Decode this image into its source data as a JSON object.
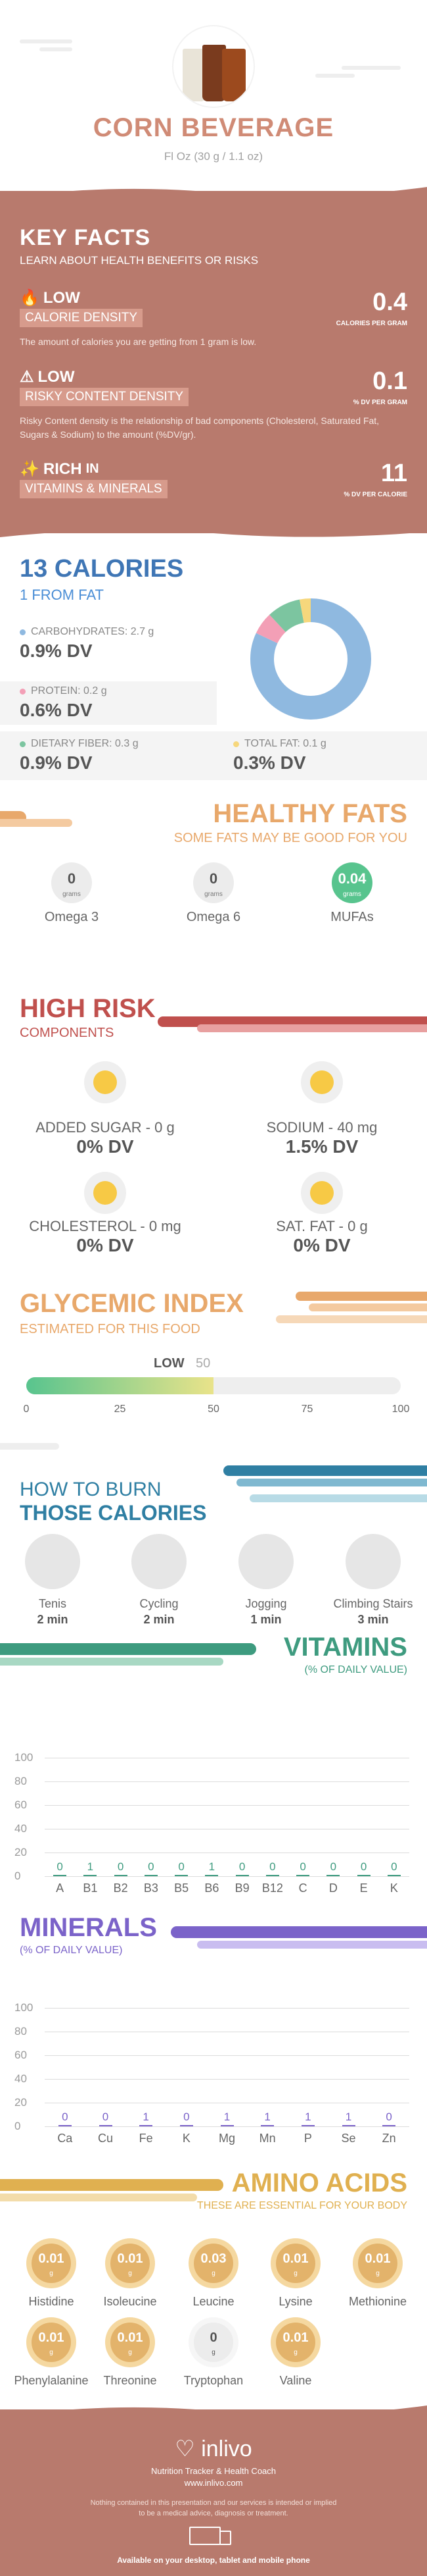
{
  "header": {
    "title": "CORN BEVERAGE",
    "subtitle": "Fl Oz (30 g / 1.1 oz)"
  },
  "key_facts": {
    "title": "KEY FACTS",
    "subtitle": "LEARN ABOUT HEALTH BENEFITS OR RISKS",
    "items": [
      {
        "level": "LOW",
        "tag": "CALORIE DENSITY",
        "value": "0.4",
        "unit": "CALORIES PER GRAM",
        "desc": "The amount of calories you are getting from 1 gram is low."
      },
      {
        "level": "LOW",
        "tag": "RISKY CONTENT DENSITY",
        "value": "0.1",
        "unit": "% DV PER GRAM",
        "desc": "Risky Content density is the relationship of bad components (Cholesterol, Saturated Fat, Sugars & Sodium) to the amount (%DV/gr)."
      },
      {
        "level": "RICH",
        "level_suffix": "IN",
        "tag": "VITAMINS & MINERALS",
        "value": "11",
        "unit": "% DV PER CALORIE",
        "desc": ""
      }
    ]
  },
  "calories": {
    "title": "13 CALORIES",
    "subtitle": "1 FROM FAT",
    "nutrients": [
      {
        "label": "CARBOHYDRATES: 2.7 g",
        "dv": "0.9% DV",
        "color": "#8fb9e0"
      },
      {
        "label": "PROTEIN: 0.2 g",
        "dv": "0.6% DV",
        "color": "#f39fb6"
      },
      {
        "label": "DIETARY FIBER: 0.3 g",
        "dv": "0.9% DV",
        "color": "#7cc5a0"
      },
      {
        "label": "TOTAL FAT: 0.1 g",
        "dv": "0.3% DV",
        "color": "#f6d77c"
      }
    ],
    "donut": [
      {
        "name": "carbs",
        "value": 0.82,
        "color": "#8fb9e0"
      },
      {
        "name": "protein",
        "value": 0.06,
        "color": "#f39fb6"
      },
      {
        "name": "fiber",
        "value": 0.09,
        "color": "#7cc5a0"
      },
      {
        "name": "fat",
        "value": 0.03,
        "color": "#f6d77c"
      }
    ]
  },
  "healthy_fats": {
    "title": "HEALTHY FATS",
    "subtitle": "SOME FATS MAY BE GOOD FOR YOU",
    "items": [
      {
        "name": "Omega 3",
        "value": "0",
        "unit": "grams",
        "highlight": false
      },
      {
        "name": "Omega 6",
        "value": "0",
        "unit": "grams",
        "highlight": false
      },
      {
        "name": "MUFAs",
        "value": "0.04",
        "unit": "grams",
        "highlight": true
      }
    ]
  },
  "high_risk": {
    "title": "HIGH RISK",
    "subtitle": "COMPONENTS",
    "items": [
      {
        "label": "ADDED SUGAR - 0 g",
        "dv": "0% DV",
        "face": "grin"
      },
      {
        "label": "SODIUM - 40 mg",
        "dv": "1.5% DV",
        "face": "smile"
      },
      {
        "label": "CHOLESTEROL - 0 mg",
        "dv": "0% DV",
        "face": "grin"
      },
      {
        "label": "SAT. FAT - 0 g",
        "dv": "0% DV",
        "face": "grin"
      }
    ]
  },
  "glycemic": {
    "title": "GLYCEMIC INDEX",
    "subtitle": "ESTIMATED FOR THIS FOOD",
    "level": "LOW",
    "value": "50",
    "fraction": 0.5,
    "ticks": [
      "0",
      "25",
      "50",
      "75",
      "100"
    ]
  },
  "burn": {
    "title_1": "HOW TO BURN",
    "title_2": "THOSE CALORIES",
    "activities": [
      {
        "name": "Tenis",
        "time": "2 min",
        "icon": "tennis-icon"
      },
      {
        "name": "Cycling",
        "time": "2 min",
        "icon": "cycling-icon"
      },
      {
        "name": "Jogging",
        "time": "1 min",
        "icon": "jogging-icon"
      },
      {
        "name": "Climbing Stairs",
        "time": "3 min",
        "icon": "stairs-icon"
      }
    ]
  },
  "chart_data": [
    {
      "type": "bar",
      "title": "VITAMINS",
      "subtitle": "(% OF DAILY VALUE)",
      "categories": [
        "A",
        "B1",
        "B2",
        "B3",
        "B5",
        "B6",
        "B9",
        "B12",
        "C",
        "D",
        "E",
        "K"
      ],
      "values": [
        0,
        1,
        0,
        0,
        0,
        1,
        0,
        0,
        0,
        0,
        0,
        0
      ],
      "yticks": [
        "100",
        "80",
        "60",
        "40",
        "20",
        "0"
      ],
      "ylim": [
        0,
        100
      ],
      "color": "#3e9b7f"
    },
    {
      "type": "bar",
      "title": "MINERALS",
      "subtitle": "(% OF DAILY VALUE)",
      "categories": [
        "Ca",
        "Cu",
        "Fe",
        "K",
        "Mg",
        "Mn",
        "P",
        "Se",
        "Zn"
      ],
      "values": [
        0,
        0,
        1,
        0,
        1,
        1,
        1,
        1,
        0
      ],
      "yticks": [
        "100",
        "80",
        "60",
        "40",
        "20",
        "0"
      ],
      "ylim": [
        0,
        100
      ],
      "color": "#7b63c9"
    }
  ],
  "amino": {
    "title": "AMINO ACIDS",
    "subtitle": "THESE ARE ESSENTIAL FOR YOUR BODY",
    "unit": "g",
    "items": [
      {
        "name": "Histidine",
        "value": "0.01"
      },
      {
        "name": "Isoleucine",
        "value": "0.01"
      },
      {
        "name": "Leucine",
        "value": "0.03"
      },
      {
        "name": "Lysine",
        "value": "0.01"
      },
      {
        "name": "Methionine",
        "value": "0.01"
      },
      {
        "name": "Phenylalanine",
        "value": "0.01"
      },
      {
        "name": "Threonine",
        "value": "0.01"
      },
      {
        "name": "Tryptophan",
        "value": "0"
      },
      {
        "name": "Valine",
        "value": "0.01"
      }
    ]
  },
  "footer": {
    "brand": "inlivo",
    "tagline": "Nutrition Tracker & Health Coach",
    "url": "www.inlivo.com",
    "disclaimer_1": "Nothing contained in this presentation and our services is intended or implied",
    "disclaimer_2": "to be a medical advice, diagnosis or treatment.",
    "available": "Available on your desktop, tablet and mobile phone"
  },
  "colors": {
    "brand": "#b87a6d",
    "title_rose": "#d08b76",
    "calories_blue": "#3f76b5",
    "fats_orange": "#e8a86b",
    "risk_red": "#c0504d",
    "gly_orange": "#e8a86b",
    "burn_blue": "#2f7fa3",
    "vitamins_green": "#3e9b7f",
    "minerals_purple": "#7b63c9",
    "amino_gold": "#e0b050"
  }
}
